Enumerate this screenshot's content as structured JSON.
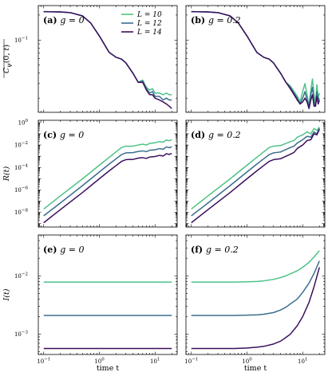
{
  "chart_data": [
    {
      "type": "line",
      "panel": "(a)",
      "g_label": "g = 0",
      "ylabel": "C_ψ(0,t) (overlined)",
      "xlabel": "",
      "xscale": "log",
      "yscale": "log",
      "xlim": [
        0.08,
        25
      ],
      "ylim": [
        0.0135,
        0.26
      ],
      "yticks": [
        {
          "v": 0.1,
          "m": "10",
          "e": "−1"
        }
      ],
      "xticks": [
        {
          "v": 0.1,
          "m": "10",
          "e": "−1"
        },
        {
          "v": 1,
          "m": "10",
          "e": "0"
        },
        {
          "v": 10,
          "m": "10",
          "e": "1"
        }
      ],
      "tick_labels_x": false,
      "legend": {
        "position": "top-right",
        "entries": [
          "L = 10",
          "L = 12",
          "L = 14"
        ]
      },
      "series": [
        {
          "name": "L = 10",
          "color": "#4cc386",
          "x": [
            0.1,
            0.2,
            0.3,
            0.5,
            0.7,
            1,
            1.5,
            2,
            2.5,
            3,
            4,
            5,
            6,
            7,
            8,
            9,
            10,
            12,
            14,
            16,
            18,
            20
          ],
          "y": [
            0.22,
            0.218,
            0.214,
            0.195,
            0.16,
            0.112,
            0.071,
            0.062,
            0.059,
            0.053,
            0.04,
            0.031,
            0.033,
            0.027,
            0.025,
            0.026,
            0.023,
            0.023,
            0.022,
            0.023,
            0.022,
            0.022
          ]
        },
        {
          "name": "L = 12",
          "color": "#3b6e8e",
          "x": [
            0.1,
            0.2,
            0.3,
            0.5,
            0.7,
            1,
            1.5,
            2,
            2.5,
            3,
            4,
            5,
            6,
            7,
            8,
            9,
            10,
            12,
            14,
            16,
            18,
            20
          ],
          "y": [
            0.22,
            0.218,
            0.214,
            0.195,
            0.16,
            0.112,
            0.071,
            0.062,
            0.059,
            0.053,
            0.04,
            0.031,
            0.032,
            0.026,
            0.023,
            0.024,
            0.021,
            0.021,
            0.019,
            0.02,
            0.019,
            0.019
          ]
        },
        {
          "name": "L = 14",
          "color": "#3b0f5e",
          "x": [
            0.1,
            0.2,
            0.3,
            0.5,
            0.7,
            1,
            1.5,
            2,
            2.5,
            3,
            4,
            5,
            6,
            7,
            8,
            9,
            10,
            12,
            14,
            16,
            18,
            20
          ],
          "y": [
            0.22,
            0.218,
            0.214,
            0.195,
            0.16,
            0.112,
            0.071,
            0.062,
            0.059,
            0.053,
            0.04,
            0.031,
            0.031,
            0.025,
            0.022,
            0.022,
            0.02,
            0.019,
            0.018,
            0.017,
            0.016,
            0.015
          ]
        }
      ]
    },
    {
      "type": "line",
      "panel": "(b)",
      "g_label": "g = 0.2",
      "xscale": "log",
      "yscale": "log",
      "xlim": [
        0.08,
        25
      ],
      "ylim": [
        0.0135,
        0.26
      ],
      "xticks": [
        {
          "v": 0.1,
          "m": "10",
          "e": "−1"
        },
        {
          "v": 1,
          "m": "10",
          "e": "0"
        },
        {
          "v": 10,
          "m": "10",
          "e": "1"
        }
      ],
      "tick_labels_x": false,
      "tick_labels_y": false,
      "series": [
        {
          "name": "L = 10",
          "color": "#4cc386",
          "x": [
            0.1,
            0.2,
            0.3,
            0.5,
            0.7,
            1,
            1.5,
            2,
            2.5,
            3,
            4,
            5,
            6,
            7,
            8,
            9,
            10,
            11,
            12,
            13,
            14,
            15,
            16,
            17,
            18,
            19,
            20
          ],
          "y": [
            0.22,
            0.218,
            0.214,
            0.195,
            0.16,
            0.112,
            0.071,
            0.062,
            0.059,
            0.053,
            0.04,
            0.031,
            0.028,
            0.024,
            0.021,
            0.018,
            0.024,
            0.03,
            0.022,
            0.016,
            0.025,
            0.034,
            0.022,
            0.017,
            0.029,
            0.02,
            0.023
          ]
        },
        {
          "name": "L = 12",
          "color": "#3b6e8e",
          "x": [
            0.1,
            0.2,
            0.3,
            0.5,
            0.7,
            1,
            1.5,
            2,
            2.5,
            3,
            4,
            5,
            6,
            7,
            8,
            9,
            10,
            11,
            12,
            13,
            14,
            15,
            16,
            17,
            18,
            19,
            20
          ],
          "y": [
            0.22,
            0.218,
            0.214,
            0.195,
            0.16,
            0.112,
            0.071,
            0.062,
            0.059,
            0.053,
            0.04,
            0.031,
            0.027,
            0.023,
            0.02,
            0.017,
            0.02,
            0.024,
            0.019,
            0.016,
            0.022,
            0.027,
            0.018,
            0.016,
            0.024,
            0.019,
            0.02
          ]
        },
        {
          "name": "L = 14",
          "color": "#3b0f5e",
          "x": [
            0.1,
            0.2,
            0.3,
            0.5,
            0.7,
            1,
            1.5,
            2,
            2.5,
            3,
            4,
            5,
            6,
            7,
            8,
            9,
            10,
            11,
            12,
            13,
            14,
            15,
            16,
            17,
            18,
            19,
            20
          ],
          "y": [
            0.22,
            0.218,
            0.214,
            0.195,
            0.16,
            0.112,
            0.071,
            0.062,
            0.059,
            0.053,
            0.04,
            0.031,
            0.026,
            0.022,
            0.019,
            0.017,
            0.018,
            0.02,
            0.018,
            0.015,
            0.019,
            0.022,
            0.016,
            0.016,
            0.021,
            0.017,
            0.019
          ]
        }
      ]
    },
    {
      "type": "line",
      "panel": "(c)",
      "g_label": "g = 0",
      "ylabel": "R(t)",
      "xscale": "log",
      "yscale": "log",
      "xlim": [
        0.08,
        25
      ],
      "ylim": [
        5e-10,
        1.6
      ],
      "yticks": [
        {
          "v": 1,
          "m": "10",
          "e": "0"
        },
        {
          "v": 0.01,
          "m": "10",
          "e": "−2"
        },
        {
          "v": 0.0001,
          "m": "10",
          "e": "−4"
        },
        {
          "v": 1e-06,
          "m": "10",
          "e": "−6"
        },
        {
          "v": 1e-08,
          "m": "10",
          "e": "−8"
        }
      ],
      "xticks": [
        {
          "v": 0.1,
          "m": "10",
          "e": "−1"
        },
        {
          "v": 1,
          "m": "10",
          "e": "0"
        },
        {
          "v": 10,
          "m": "10",
          "e": "1"
        }
      ],
      "tick_labels_x": false,
      "series": [
        {
          "name": "L = 10",
          "color": "#4cc386",
          "x": [
            0.1,
            0.2,
            0.5,
            1,
            1.5,
            2,
            2.5,
            3,
            4,
            5,
            6,
            7,
            8,
            10,
            12,
            14,
            16,
            18,
            20
          ],
          "y": [
            2e-08,
            3e-07,
            1e-05,
            0.00016,
            0.0008,
            0.0025,
            0.006,
            0.008,
            0.008,
            0.01,
            0.012,
            0.01,
            0.014,
            0.016,
            0.02,
            0.018,
            0.028,
            0.024,
            0.03
          ]
        },
        {
          "name": "L = 12",
          "color": "#3b6e8e",
          "x": [
            0.1,
            0.2,
            0.5,
            1,
            1.5,
            2,
            2.5,
            3,
            4,
            5,
            6,
            7,
            8,
            10,
            12,
            14,
            16,
            18,
            20
          ],
          "y": [
            5e-09,
            7e-08,
            2.5e-06,
            4e-05,
            0.0002,
            0.0006,
            0.0014,
            0.002,
            0.0021,
            0.0027,
            0.003,
            0.0026,
            0.0034,
            0.0038,
            0.0048,
            0.0042,
            0.0068,
            0.0058,
            0.007
          ]
        },
        {
          "name": "L = 14",
          "color": "#3b0f5e",
          "x": [
            0.1,
            0.2,
            0.5,
            1,
            1.5,
            2,
            2.5,
            3,
            4,
            5,
            6,
            7,
            8,
            10,
            12,
            14,
            16,
            18,
            20
          ],
          "y": [
            1.2e-09,
            1.8e-08,
            6e-07,
            1e-05,
            5e-05,
            0.00015,
            0.00035,
            0.0005,
            0.00052,
            0.00068,
            0.00075,
            0.00065,
            0.00085,
            0.00095,
            0.0012,
            0.00105,
            0.0017,
            0.00145,
            0.0018
          ]
        }
      ]
    },
    {
      "type": "line",
      "panel": "(d)",
      "g_label": "g = 0.2",
      "xscale": "log",
      "yscale": "log",
      "xlim": [
        0.08,
        25
      ],
      "ylim": [
        5e-10,
        1.6
      ],
      "xticks": [
        {
          "v": 0.1,
          "m": "10",
          "e": "−1"
        },
        {
          "v": 1,
          "m": "10",
          "e": "0"
        },
        {
          "v": 10,
          "m": "10",
          "e": "1"
        }
      ],
      "tick_labels_x": false,
      "tick_labels_y": false,
      "series": [
        {
          "name": "L = 10",
          "color": "#4cc386",
          "x": [
            0.1,
            0.2,
            0.5,
            1,
            1.5,
            2,
            2.5,
            3,
            4,
            5,
            6,
            7,
            8,
            10,
            12,
            14,
            16,
            18,
            20
          ],
          "y": [
            2e-08,
            3e-07,
            1e-05,
            0.00016,
            0.0008,
            0.0025,
            0.006,
            0.008,
            0.009,
            0.014,
            0.02,
            0.025,
            0.05,
            0.08,
            0.15,
            0.1,
            0.3,
            0.2,
            0.4
          ]
        },
        {
          "name": "L = 12",
          "color": "#3b6e8e",
          "x": [
            0.1,
            0.2,
            0.5,
            1,
            1.5,
            2,
            2.5,
            3,
            4,
            5,
            6,
            7,
            8,
            10,
            12,
            14,
            16,
            18,
            20
          ],
          "y": [
            5e-09,
            7e-08,
            2.5e-06,
            4e-05,
            0.0002,
            0.0006,
            0.0014,
            0.002,
            0.0024,
            0.004,
            0.006,
            0.008,
            0.015,
            0.03,
            0.06,
            0.05,
            0.15,
            0.1,
            0.3
          ]
        },
        {
          "name": "L = 14",
          "color": "#3b0f5e",
          "x": [
            0.1,
            0.2,
            0.5,
            1,
            1.5,
            2,
            2.5,
            3,
            4,
            5,
            6,
            7,
            8,
            10,
            12,
            14,
            16,
            18,
            20
          ],
          "y": [
            1.2e-09,
            1.8e-08,
            6e-07,
            1e-05,
            5e-05,
            0.00015,
            0.00035,
            0.0005,
            0.0006,
            0.001,
            0.0015,
            0.0022,
            0.005,
            0.01,
            0.025,
            0.03,
            0.1,
            0.08,
            0.25
          ]
        }
      ]
    },
    {
      "type": "line",
      "panel": "(e)",
      "g_label": "g = 0",
      "ylabel": "I(t)",
      "xlabel": "time t",
      "xscale": "log",
      "yscale": "log",
      "xlim": [
        0.08,
        25
      ],
      "ylim": [
        0.00045,
        0.05
      ],
      "yticks": [
        {
          "v": 0.01,
          "m": "10",
          "e": "−2"
        },
        {
          "v": 0.001,
          "m": "10",
          "e": "−3"
        }
      ],
      "xticks": [
        {
          "v": 0.1,
          "m": "10",
          "e": "−1"
        },
        {
          "v": 1,
          "m": "10",
          "e": "0"
        },
        {
          "v": 10,
          "m": "10",
          "e": "1"
        }
      ],
      "series": [
        {
          "name": "L = 10",
          "color": "#4cc386",
          "x": [
            0.1,
            20
          ],
          "y": [
            0.0078,
            0.0078
          ]
        },
        {
          "name": "L = 12",
          "color": "#3b6e8e",
          "x": [
            0.1,
            20
          ],
          "y": [
            0.0021,
            0.0021
          ]
        },
        {
          "name": "L = 14",
          "color": "#3b0f5e",
          "x": [
            0.1,
            20
          ],
          "y": [
            0.00057,
            0.00057
          ]
        }
      ]
    },
    {
      "type": "line",
      "panel": "(f)",
      "g_label": "g = 0.2",
      "xlabel": "time t",
      "xscale": "log",
      "yscale": "log",
      "xlim": [
        0.08,
        25
      ],
      "ylim": [
        0.00045,
        0.05
      ],
      "xticks": [
        {
          "v": 0.1,
          "m": "10",
          "e": "−1"
        },
        {
          "v": 1,
          "m": "10",
          "e": "0"
        },
        {
          "v": 10,
          "m": "10",
          "e": "1"
        }
      ],
      "tick_labels_y": false,
      "series": [
        {
          "name": "L = 10",
          "color": "#4cc386",
          "x": [
            0.1,
            0.3,
            0.6,
            1,
            1.5,
            2,
            3,
            4,
            5,
            6,
            8,
            10,
            13,
            16,
            20
          ],
          "y": [
            0.0078,
            0.0078,
            0.0078,
            0.0079,
            0.008,
            0.0082,
            0.0087,
            0.0093,
            0.01,
            0.0108,
            0.0122,
            0.014,
            0.017,
            0.021,
            0.027
          ]
        },
        {
          "name": "L = 12",
          "color": "#3b6e8e",
          "x": [
            0.1,
            0.3,
            0.6,
            1,
            1.5,
            2,
            3,
            4,
            5,
            6,
            8,
            10,
            13,
            16,
            20
          ],
          "y": [
            0.0021,
            0.0021,
            0.0021,
            0.00212,
            0.00215,
            0.0022,
            0.00235,
            0.0026,
            0.0029,
            0.0033,
            0.004,
            0.0052,
            0.0075,
            0.011,
            0.018
          ]
        },
        {
          "name": "L = 14",
          "color": "#3b0f5e",
          "x": [
            0.1,
            0.3,
            0.6,
            1,
            1.5,
            2,
            3,
            4,
            5,
            6,
            8,
            10,
            13,
            16,
            20
          ],
          "y": [
            0.00057,
            0.00057,
            0.00057,
            0.00058,
            0.0006,
            0.00062,
            0.00068,
            0.00076,
            0.00088,
            0.001,
            0.0014,
            0.002,
            0.0035,
            0.0065,
            0.014
          ]
        }
      ]
    }
  ]
}
